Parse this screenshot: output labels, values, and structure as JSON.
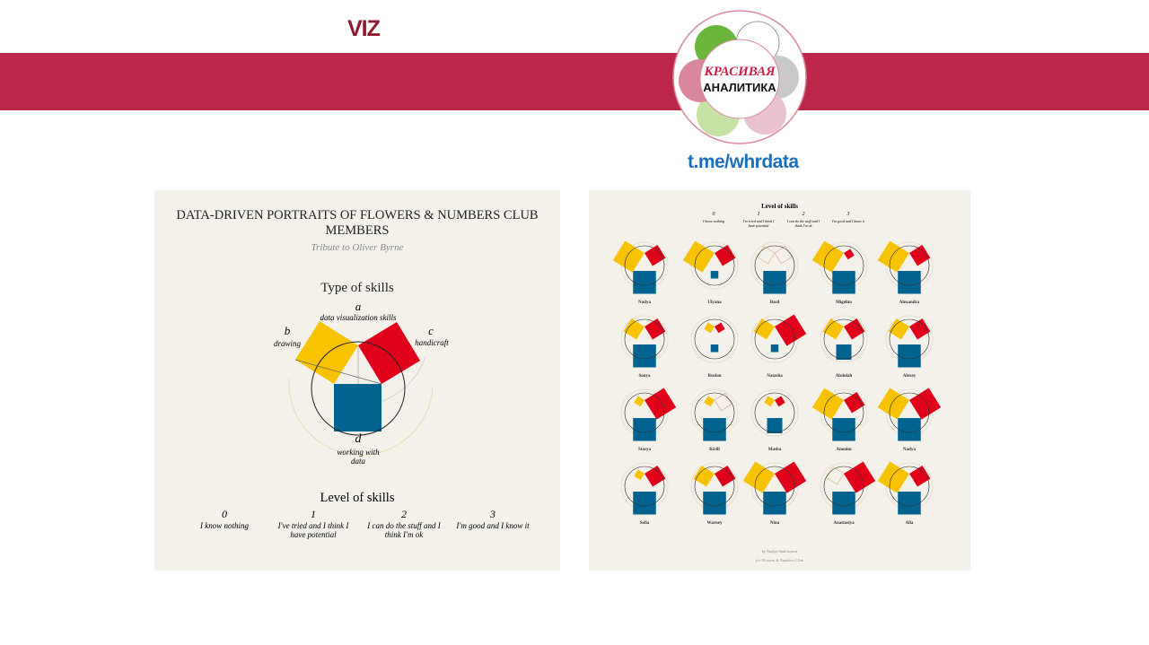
{
  "header": {
    "section_label": "VIZ",
    "logo_line1": "КРАСИВАЯ",
    "logo_line2": "АНАЛИТИКА",
    "link": "t.me/whrdata"
  },
  "colors": {
    "band": "#bc2649",
    "yellow": "#f7c200",
    "red": "#e0001b",
    "blue": "#00628f",
    "panel": "#f3f1ea"
  },
  "left_panel": {
    "title": "DATA-DRIVEN PORTRAITS OF FLOWERS & NUMBERS CLUB MEMBERS",
    "subtitle": "Tribute to Oliver Byrne",
    "type_heading": "Type of skills",
    "skills": [
      {
        "letter": "a",
        "label": "data visualization skills"
      },
      {
        "letter": "b",
        "label": "drawing"
      },
      {
        "letter": "c",
        "label": "handicraft"
      },
      {
        "letter": "d",
        "label": "working with data"
      }
    ],
    "level_heading": "Level of skills",
    "levels": [
      {
        "value": "0",
        "label": "I know nothing"
      },
      {
        "value": "1",
        "label": "I've tried and I think I have potential"
      },
      {
        "value": "2",
        "label": "I can do the stuff and I think I'm ok"
      },
      {
        "value": "3",
        "label": "I'm good and I know it"
      }
    ]
  },
  "right_panel": {
    "level_heading": "Level of skills",
    "levels": [
      {
        "value": "0",
        "label": "I know nothing"
      },
      {
        "value": "1",
        "label": "I've tried and I think I have potential"
      },
      {
        "value": "2",
        "label": "I can do the stuff and I think I'm ok"
      },
      {
        "value": "3",
        "label": "I'm good and I know it"
      }
    ],
    "members": [
      {
        "name": "Nadya",
        "b": 3,
        "c": 2,
        "d": 3
      },
      {
        "name": "Ulyana",
        "b": 3,
        "c": 2,
        "d": 1
      },
      {
        "name": "Basil",
        "b": 0,
        "c": 0,
        "d": 3
      },
      {
        "name": "Migelito",
        "b": 3,
        "c": 1,
        "d": 3
      },
      {
        "name": "Alexandra",
        "b": 3,
        "c": 2,
        "d": 3
      },
      {
        "name": "Sonya",
        "b": 2,
        "c": 2,
        "d": 3
      },
      {
        "name": "Ruslan",
        "b": 1,
        "c": 1,
        "d": 1
      },
      {
        "name": "Natasha",
        "b": 2,
        "c": 3,
        "d": 1
      },
      {
        "name": "Abdulah",
        "b": 2,
        "c": 2,
        "d": 2
      },
      {
        "name": "Alexey",
        "b": 2,
        "c": 2,
        "d": 3
      },
      {
        "name": "Stasya",
        "b": 1,
        "c": 3,
        "d": 3
      },
      {
        "name": "Kirill",
        "b": 1,
        "c": 0,
        "d": 3
      },
      {
        "name": "Masha",
        "b": 1,
        "c": 1,
        "d": 2
      },
      {
        "name": "Anonim",
        "b": 3,
        "c": 2,
        "d": 3
      },
      {
        "name": "Nadya",
        "b": 3,
        "c": 3,
        "d": 3
      },
      {
        "name": "Sofia",
        "b": 1,
        "c": 2,
        "d": 3
      },
      {
        "name": "Warney",
        "b": 2,
        "c": 2,
        "d": 3
      },
      {
        "name": "Nina",
        "b": 3,
        "c": 3,
        "d": 3
      },
      {
        "name": "Anastasiya",
        "b": 0,
        "c": 3,
        "d": 3
      },
      {
        "name": "Alla",
        "b": 3,
        "c": 2,
        "d": 3
      }
    ],
    "credit_line1": "by Nadya Andrianova",
    "credit_line2": "for Flowers & Numbers Club"
  }
}
